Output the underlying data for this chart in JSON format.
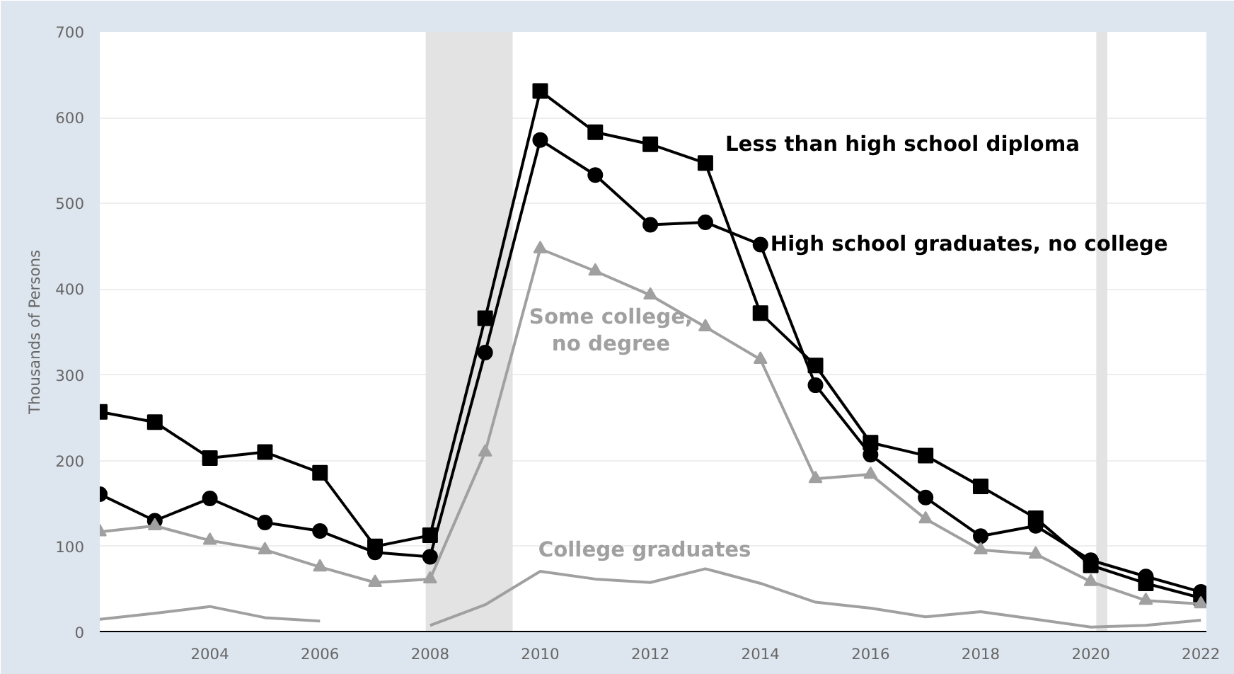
{
  "chart_data": {
    "type": "line",
    "ylabel": "Thousands of Persons",
    "x": [
      2002,
      2003,
      2004,
      2005,
      2006,
      2007,
      2008,
      2009,
      2010,
      2011,
      2012,
      2013,
      2014,
      2015,
      2016,
      2017,
      2018,
      2019,
      2020,
      2021,
      2022
    ],
    "series": [
      {
        "name": "Less than high school diploma",
        "color": "#000000",
        "marker": "square",
        "values": [
          257,
          245,
          203,
          210,
          186,
          100,
          113,
          366,
          631,
          583,
          569,
          547,
          372,
          311,
          221,
          206,
          170,
          133,
          78,
          57,
          40
        ]
      },
      {
        "name": "High school graduates, no college",
        "color": "#000000",
        "marker": "circle",
        "values": [
          161,
          130,
          156,
          128,
          118,
          93,
          88,
          326,
          574,
          533,
          475,
          478,
          452,
          288,
          207,
          157,
          112,
          124,
          84,
          65,
          47
        ]
      },
      {
        "name": "Some college,\nno degree",
        "color": "#a0a0a0",
        "marker": "triangle",
        "values": [
          117,
          124,
          107,
          96,
          76,
          58,
          62,
          210,
          447,
          421,
          393,
          356,
          318,
          179,
          184,
          132,
          96,
          91,
          59,
          37,
          33
        ]
      },
      {
        "name": "College graduates",
        "color": "#a0a0a0",
        "marker": "none",
        "values": [
          15,
          22,
          30,
          17,
          13,
          null,
          8,
          32,
          71,
          62,
          58,
          74,
          57,
          35,
          28,
          18,
          24,
          15,
          6,
          8,
          14
        ]
      }
    ],
    "bands": [
      {
        "axis": "x",
        "from": 2007.92,
        "to": 2009.5,
        "color": "#e3e3e3"
      },
      {
        "axis": "x",
        "from": 2020.1,
        "to": 2020.3,
        "color": "#e3e3e3"
      }
    ],
    "xlim": [
      2002,
      2022.1
    ],
    "xticks": [
      2004,
      2006,
      2008,
      2010,
      2012,
      2014,
      2016,
      2018,
      2020,
      2022
    ],
    "ylim": [
      0,
      700
    ],
    "yticks": [
      0,
      100,
      200,
      300,
      400,
      500,
      600,
      700
    ],
    "grid": "y",
    "legend": false,
    "line_style": "solid"
  }
}
